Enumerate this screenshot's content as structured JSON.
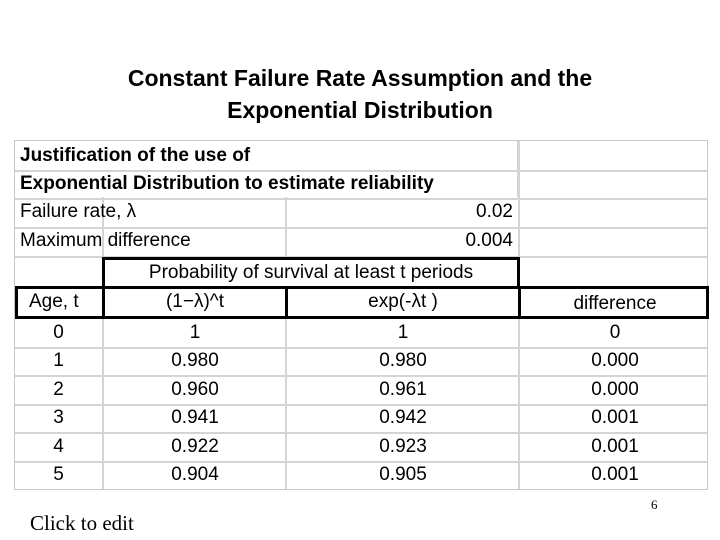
{
  "slide": {
    "title_line1": "Constant Failure Rate Assumption and the",
    "title_line2": "Exponential Distribution",
    "footer_text": "Click to edit",
    "page_number": "6"
  },
  "table": {
    "heading_line1": "Justification of the use of",
    "heading_line2": "Exponential Distribution to estimate reliability",
    "failure_rate_label": "Failure rate, λ",
    "failure_rate_value": "0.02",
    "max_diff_label": "Maximum difference",
    "max_diff_value": "0.004",
    "group_header": "Probability of survival at least t periods",
    "columns": [
      "Age, t",
      "(1−λ)^t",
      "exp(-λt )",
      "difference"
    ],
    "rows": [
      [
        "0",
        "1",
        "1",
        "0"
      ],
      [
        "1",
        "0.980",
        "0.980",
        "0.000"
      ],
      [
        "2",
        "0.960",
        "0.961",
        "0.000"
      ],
      [
        "3",
        "0.941",
        "0.942",
        "0.001"
      ],
      [
        "4",
        "0.922",
        "0.923",
        "0.001"
      ],
      [
        "5",
        "0.904",
        "0.905",
        "0.001"
      ]
    ]
  }
}
